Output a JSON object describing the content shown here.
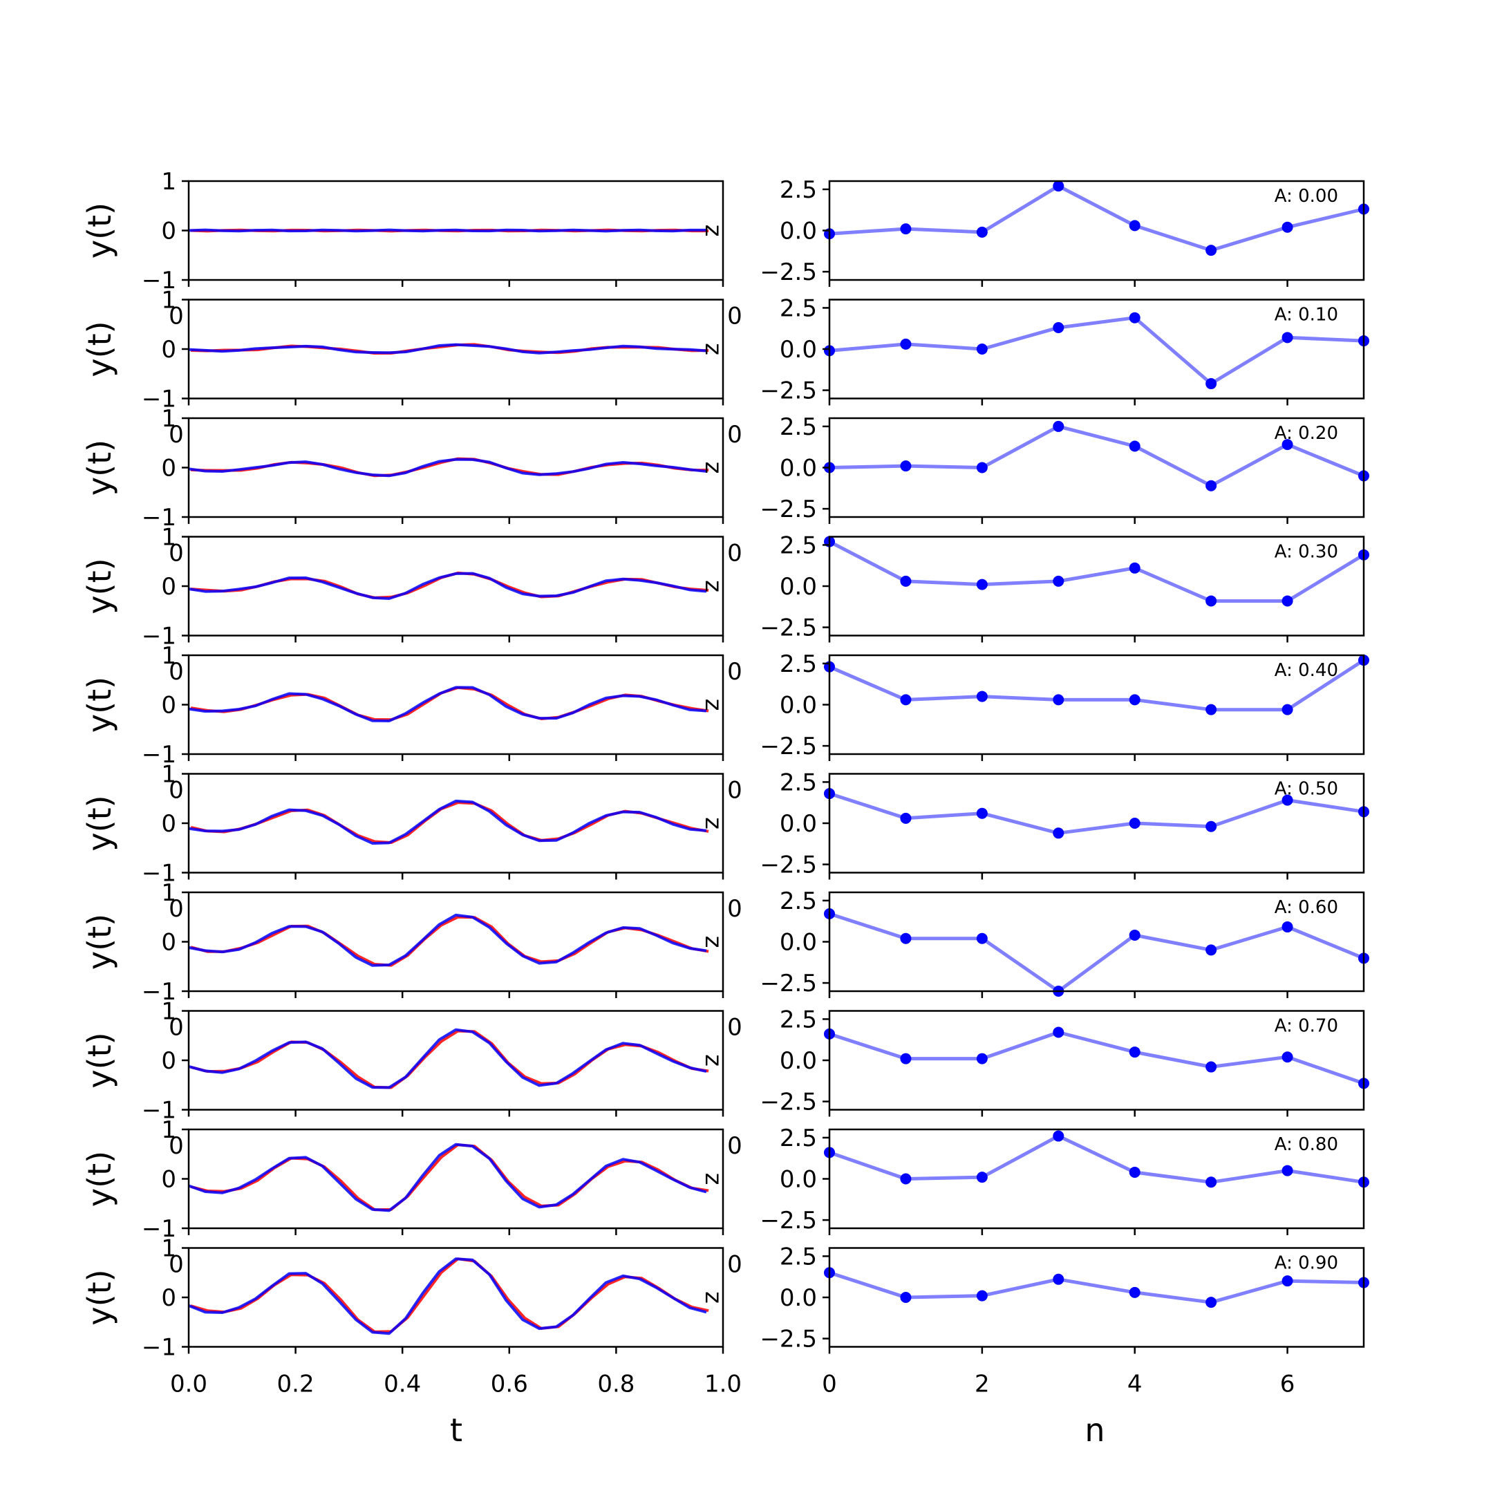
{
  "chart_data": {
    "type": "line",
    "left": {
      "ylabel": "y(t)",
      "xlabel": "t",
      "xlim": [
        0,
        1
      ],
      "ylim": [
        -1,
        1
      ],
      "xticks": [
        "0.0",
        "0.2",
        "0.4",
        "0.6",
        "0.8",
        "1.0"
      ],
      "yticks": [
        "−1",
        "0",
        "1"
      ],
      "series_colors": {
        "a": "#0000ff",
        "b": "#ff0000"
      },
      "t": [
        0.0,
        0.031,
        0.063,
        0.094,
        0.125,
        0.156,
        0.188,
        0.219,
        0.25,
        0.281,
        0.313,
        0.344,
        0.375,
        0.406,
        0.438,
        0.469,
        0.5,
        0.531,
        0.563,
        0.594,
        0.625,
        0.656,
        0.688,
        0.719,
        0.75,
        0.781,
        0.813,
        0.844,
        0.875,
        0.906,
        0.938,
        0.969
      ],
      "base": [
        -0.19,
        -0.32,
        -0.34,
        -0.24,
        -0.03,
        0.27,
        0.53,
        0.53,
        0.32,
        -0.07,
        -0.51,
        -0.79,
        -0.8,
        -0.47,
        0.08,
        0.58,
        0.88,
        0.84,
        0.5,
        -0.06,
        -0.49,
        -0.71,
        -0.67,
        -0.39,
        -0.02,
        0.32,
        0.48,
        0.43,
        0.22,
        -0.02,
        -0.23,
        -0.32
      ],
      "panels": [
        {
          "amp": 0.0
        },
        {
          "amp": 0.1
        },
        {
          "amp": 0.2
        },
        {
          "amp": 0.3
        },
        {
          "amp": 0.4
        },
        {
          "amp": 0.5
        },
        {
          "amp": 0.6
        },
        {
          "amp": 0.7
        },
        {
          "amp": 0.8
        },
        {
          "amp": 0.9
        }
      ],
      "stray_tick_labels": [
        "0",
        "0"
      ]
    },
    "right": {
      "xlabel": "n",
      "xlim": [
        0,
        7
      ],
      "ylim": [
        -3.0,
        3.0
      ],
      "xticks": [
        "0",
        "2",
        "4",
        "6"
      ],
      "yticks": [
        "2.5",
        "0.0",
        "−2.5"
      ],
      "line_color": "#0000ff",
      "n": [
        0,
        1,
        2,
        3,
        4,
        5,
        6,
        7
      ],
      "panels": [
        {
          "label": "A: 0.00",
          "values": [
            -0.2,
            0.1,
            -0.1,
            2.7,
            0.3,
            -1.2,
            0.2,
            1.3
          ]
        },
        {
          "label": "A: 0.10",
          "values": [
            -0.1,
            0.3,
            0.0,
            1.3,
            1.9,
            -2.1,
            0.7,
            0.5
          ]
        },
        {
          "label": "A: 0.20",
          "values": [
            0.0,
            0.1,
            0.0,
            2.5,
            1.3,
            -1.1,
            1.4,
            -0.5
          ]
        },
        {
          "label": "A: 0.30",
          "values": [
            2.7,
            0.3,
            0.1,
            0.3,
            1.1,
            -0.9,
            -0.9,
            1.9
          ]
        },
        {
          "label": "A: 0.40",
          "values": [
            2.3,
            0.3,
            0.5,
            0.3,
            0.3,
            -0.3,
            -0.3,
            2.7
          ]
        },
        {
          "label": "A: 0.50",
          "values": [
            1.8,
            0.3,
            0.6,
            -0.6,
            0.0,
            -0.2,
            1.4,
            0.7
          ]
        },
        {
          "label": "A: 0.60",
          "values": [
            1.7,
            0.2,
            0.2,
            -3.0,
            0.4,
            -0.5,
            0.9,
            -1.0
          ]
        },
        {
          "label": "A: 0.70",
          "values": [
            1.6,
            0.1,
            0.1,
            1.7,
            0.5,
            -0.4,
            0.2,
            -1.4
          ]
        },
        {
          "label": "A: 0.80",
          "values": [
            1.6,
            0.0,
            0.1,
            2.6,
            0.4,
            -0.2,
            0.5,
            -0.2
          ]
        },
        {
          "label": "A: 0.90",
          "values": [
            1.5,
            0.0,
            0.1,
            1.1,
            0.3,
            -0.3,
            1.0,
            0.9
          ]
        }
      ]
    }
  }
}
